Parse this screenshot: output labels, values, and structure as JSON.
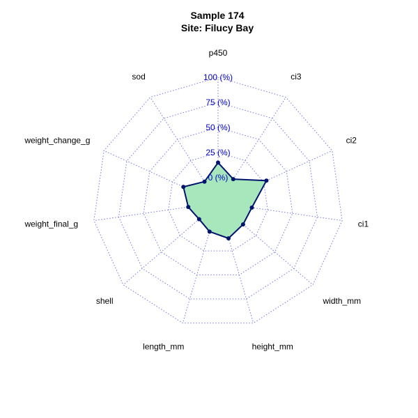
{
  "chart_data": {
    "type": "radar",
    "title": "Sample 174",
    "subtitle": "Site: Filucy Bay",
    "axes": [
      "p450",
      "ci3",
      "ci2",
      "ci1",
      "width_mm",
      "height_mm",
      "length_mm",
      "shell",
      "weight_final_g",
      "weight_change_g",
      "sod"
    ],
    "tick_labels": [
      "0 (%)",
      "25 (%)",
      "50 (%)",
      "75 (%)",
      "100 (%)"
    ],
    "range": [
      0,
      100
    ],
    "values": [
      15,
      3,
      28,
      9,
      8,
      12,
      5,
      0,
      5,
      13,
      0
    ],
    "grid": true,
    "colors": {
      "grid": "#7777dd",
      "tick_text": "#0000cc",
      "fill": "#a8e6bc",
      "line": "#00146e",
      "points": "#00146e",
      "axis_text": "#000000"
    }
  }
}
